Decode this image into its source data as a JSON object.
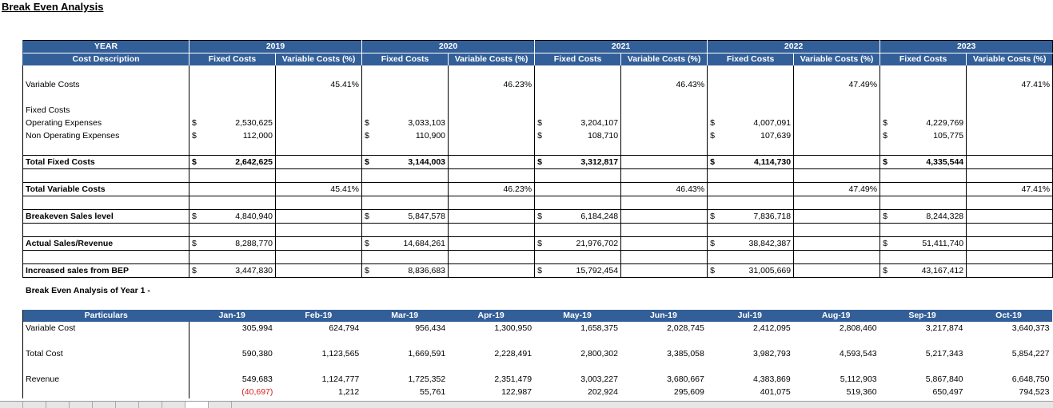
{
  "title": "Break Even Analysis",
  "table1": {
    "year_label": "YEAR",
    "cost_desc_label": "Cost Description",
    "fixed_label": "Fixed Costs",
    "variable_label": "Variable Costs (%)",
    "years": [
      "2019",
      "2020",
      "2021",
      "2022",
      "2023"
    ],
    "currency": "$",
    "rows": {
      "variable_costs": {
        "label": "Variable Costs",
        "values": [
          "45.41%",
          "46.23%",
          "46.43%",
          "47.49%",
          "47.41%"
        ]
      },
      "fixed_costs_header": "Fixed Costs",
      "operating_expenses": {
        "label": "Operating Expenses",
        "values": [
          "2,530,625",
          "3,033,103",
          "3,204,107",
          "4,007,091",
          "4,229,769"
        ]
      },
      "non_operating_expenses": {
        "label": "Non Operating Expenses",
        "values": [
          "112,000",
          "110,900",
          "108,710",
          "107,639",
          "105,775"
        ]
      },
      "total_fixed_costs": {
        "label": "Total Fixed Costs",
        "values": [
          "2,642,625",
          "3,144,003",
          "3,312,817",
          "4,114,730",
          "4,335,544"
        ]
      },
      "total_variable_costs": {
        "label": "Total Variable Costs",
        "values": [
          "45.41%",
          "46.23%",
          "46.43%",
          "47.49%",
          "47.41%"
        ]
      },
      "breakeven_sales": {
        "label": "Breakeven Sales level",
        "values": [
          "4,840,940",
          "5,847,578",
          "6,184,248",
          "7,836,718",
          "8,244,328"
        ]
      },
      "actual_sales": {
        "label": "Actual Sales/Revenue",
        "values": [
          "8,288,770",
          "14,684,261",
          "21,976,702",
          "38,842,387",
          "51,411,740"
        ]
      },
      "increased_sales": {
        "label": "Increased sales from BEP",
        "values": [
          "3,447,830",
          "8,836,683",
          "15,792,454",
          "31,005,669",
          "43,167,412"
        ]
      }
    }
  },
  "subtitle": "Break Even Analysis of Year 1 -",
  "table2": {
    "particulars_label": "Particulars",
    "months": [
      "Jan-19",
      "Feb-19",
      "Mar-19",
      "Apr-19",
      "May-19",
      "Jun-19",
      "Jul-19",
      "Aug-19",
      "Sep-19",
      "Oct-19"
    ],
    "variable_cost": {
      "label": "Variable Cost",
      "values": [
        "305,994",
        "624,794",
        "956,434",
        "1,300,950",
        "1,658,375",
        "2,028,745",
        "2,412,095",
        "2,808,460",
        "3,217,874",
        "3,640,373"
      ]
    },
    "total_cost": {
      "label": "Total Cost",
      "values": [
        "590,380",
        "1,123,565",
        "1,669,591",
        "2,228,491",
        "2,800,302",
        "3,385,058",
        "3,982,793",
        "4,593,543",
        "5,217,343",
        "5,854,227"
      ]
    },
    "revenue": {
      "label": "Revenue",
      "values": [
        "549,683",
        "1,124,777",
        "1,725,352",
        "2,351,479",
        "3,003,227",
        "3,680,667",
        "4,383,869",
        "5,112,903",
        "5,867,840",
        "6,648,750"
      ]
    },
    "difference": {
      "values": [
        "(40,697)",
        "1,212",
        "55,761",
        "122,987",
        "202,924",
        "295,609",
        "401,075",
        "519,360",
        "650,497",
        "794,523"
      ]
    }
  },
  "colors": {
    "header_bg": "#335f99",
    "negative": "#d62020"
  }
}
